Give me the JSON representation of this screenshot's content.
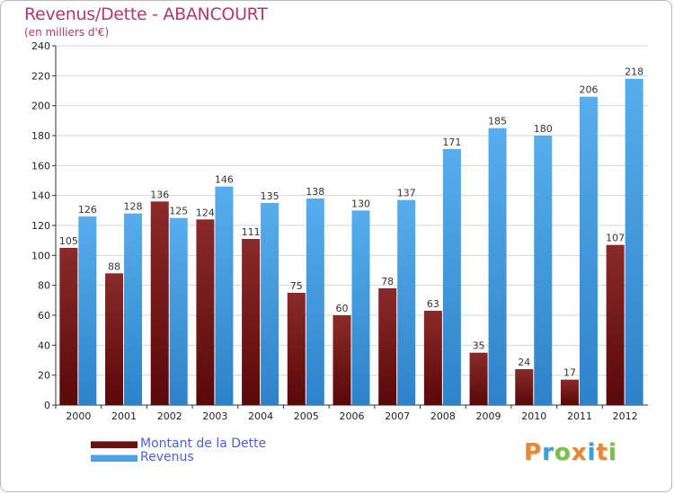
{
  "chart_data": {
    "type": "bar",
    "title": "Revenus/Dette - ABANCOURT",
    "subtitle": "(en milliers d'€)",
    "categories": [
      "2000",
      "2001",
      "2002",
      "2003",
      "2004",
      "2005",
      "2006",
      "2007",
      "2008",
      "2009",
      "2010",
      "2011",
      "2012"
    ],
    "series": [
      {
        "name": "Montant de la Dette",
        "color": "#7a1a1a",
        "values": [
          105,
          88,
          136,
          124,
          111,
          75,
          60,
          78,
          63,
          35,
          24,
          17,
          107
        ]
      },
      {
        "name": "Revenus",
        "color": "#4aa3e6",
        "values": [
          126,
          128,
          125,
          146,
          135,
          138,
          130,
          137,
          171,
          185,
          180,
          206,
          218
        ]
      }
    ],
    "ylim": [
      0,
      240
    ],
    "yticks": [
      0,
      20,
      40,
      60,
      80,
      100,
      120,
      140,
      160,
      180,
      200,
      220,
      240
    ],
    "grid": true,
    "legend": "bottom-left"
  },
  "logo": {
    "letters": [
      "P",
      "r",
      "o",
      "x",
      "i",
      "t",
      "i"
    ],
    "colors": [
      "#e8892f",
      "#3aa0d8",
      "#7ac142",
      "#e8892f",
      "#3aa0d8",
      "#e8892f",
      "#7ac142"
    ]
  }
}
